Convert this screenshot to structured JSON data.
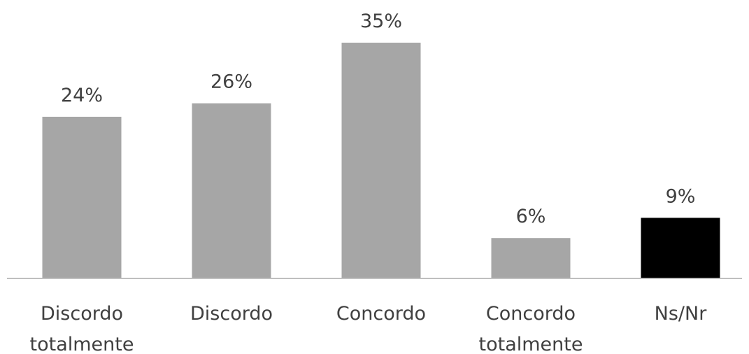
{
  "chart_data": {
    "type": "bar",
    "categories": [
      [
        "Discordo",
        "totalmente"
      ],
      [
        "Discordo"
      ],
      [
        "Concordo"
      ],
      [
        "Concordo",
        "totalmente"
      ],
      [
        "Ns/Nr"
      ]
    ],
    "values": [
      24,
      26,
      35,
      6,
      9
    ],
    "value_labels": [
      "24%",
      "26%",
      "35%",
      "6%",
      "9%"
    ],
    "unit": "%",
    "ylim": [
      0,
      35
    ],
    "grid": false,
    "legend": "none",
    "colors": [
      "#a6a6a6",
      "#a6a6a6",
      "#a6a6a6",
      "#a6a6a6",
      "#000000"
    ],
    "axis_color": "#bfbfbf",
    "text_color": "#404040"
  }
}
